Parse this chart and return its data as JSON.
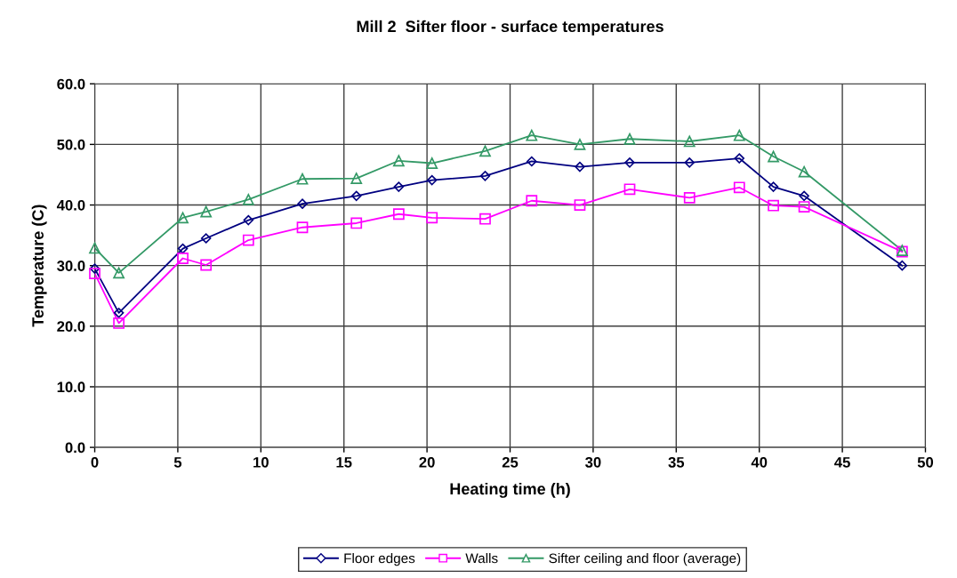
{
  "chart_data": {
    "type": "line",
    "title": "Mill 2  Sifter floor - surface temperatures",
    "xlabel": "Heating time (h)",
    "ylabel": "Temperature (C)",
    "x": [
      0,
      1.45,
      5.3,
      6.7,
      9.25,
      12.5,
      15.75,
      18.3,
      20.3,
      23.5,
      26.3,
      29.2,
      32.2,
      35.8,
      38.8,
      40.85,
      42.7,
      48.6
    ],
    "series": [
      {
        "name": "Floor edges",
        "color": "#000080",
        "marker": "diamond",
        "values": [
          29.5,
          22.2,
          32.8,
          34.5,
          37.5,
          40.2,
          41.5,
          43.0,
          44.1,
          44.8,
          47.2,
          46.3,
          47.0,
          47.0,
          47.7,
          43.0,
          41.5,
          30.0
        ]
      },
      {
        "name": "Walls",
        "color": "#ff00ff",
        "marker": "square",
        "values": [
          28.7,
          20.5,
          31.2,
          30.1,
          34.2,
          36.3,
          37.0,
          38.5,
          37.9,
          37.7,
          40.7,
          40.0,
          42.6,
          41.2,
          42.9,
          39.9,
          39.7,
          32.3
        ]
      },
      {
        "name": "Sifter ceiling and floor (average)",
        "color": "#339966",
        "marker": "triangle",
        "values": [
          32.9,
          28.8,
          37.9,
          38.9,
          40.9,
          44.3,
          44.4,
          47.3,
          46.9,
          48.9,
          51.5,
          50.0,
          50.9,
          50.5,
          51.5,
          48.0,
          45.5,
          32.5
        ]
      }
    ],
    "xlim": [
      0,
      50
    ],
    "xticks": [
      0,
      5,
      10,
      15,
      20,
      25,
      30,
      35,
      40,
      45,
      50
    ],
    "ylim": [
      0,
      60
    ],
    "yticks": [
      {
        "value": 0,
        "label": "0.0"
      },
      {
        "value": 10,
        "label": "10.0"
      },
      {
        "value": 20,
        "label": "20.0"
      },
      {
        "value": 30,
        "label": "30.0"
      },
      {
        "value": 40,
        "label": "40.0"
      },
      {
        "value": 50,
        "label": "50.0"
      },
      {
        "value": 60,
        "label": "60.0"
      }
    ],
    "grid": true,
    "legend": "bottom",
    "line_style": "solid"
  }
}
